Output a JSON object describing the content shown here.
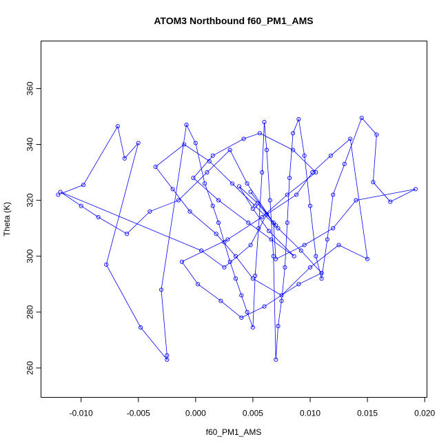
{
  "chart_data": {
    "type": "scatter",
    "render": "points-connected-by-lines",
    "title": "ATOM3 Northbound f60_PM1_AMS",
    "xlabel": "f60_PM1_AMS",
    "ylabel": "Theta (K)",
    "xlim": [
      -0.0135,
      0.0202
    ],
    "ylim": [
      249.5,
      377
    ],
    "x_ticks": [
      -0.01,
      -0.005,
      0.0,
      0.005,
      0.01,
      0.015,
      0.02
    ],
    "x_tick_labels": [
      "-0.010",
      "-0.005",
      "0.000",
      "0.005",
      "0.010",
      "0.015",
      "0.020"
    ],
    "y_ticks": [
      260,
      280,
      300,
      320,
      340,
      360
    ],
    "y_tick_labels": [
      "260",
      "280",
      "300",
      "320",
      "340",
      "360"
    ],
    "grid": false,
    "colors": {
      "series": "#0000ff",
      "axis": "#000000",
      "background": "#ffffff"
    },
    "series": [
      {
        "marker": "open-circle",
        "x": [
          -0.012,
          -0.0098,
          -0.0068,
          -0.0062,
          -0.005,
          -0.0078,
          -0.0048,
          -0.0025,
          -0.0025,
          -0.003,
          -0.0008,
          0.0,
          0.0008,
          0.0015,
          0.002,
          0.0025,
          0.003,
          0.0035,
          0.004,
          0.0045,
          0.005,
          0.0052,
          0.0055,
          0.0058,
          0.006,
          0.0062,
          0.0065,
          0.0068,
          0.007,
          0.0072,
          0.0075,
          0.0078,
          0.008,
          0.0082,
          0.0085,
          0.009,
          0.0095,
          0.01,
          0.0105,
          0.011,
          0.0115,
          0.012,
          0.013,
          0.0145,
          0.0158,
          0.0155,
          0.017,
          0.0192,
          0.014,
          0.012,
          0.0095,
          0.007,
          0.0068,
          0.0045,
          0.003,
          0.001,
          -0.0015,
          -0.004,
          -0.006,
          -0.0085,
          -0.01,
          -0.0118,
          0.0005,
          0.0025,
          0.0048,
          0.0062,
          0.0088,
          0.0102,
          0.0118,
          0.0135,
          0.015,
          0.0125,
          0.01,
          0.0075,
          0.005,
          0.0035,
          0.0018,
          -0.0005,
          -0.002,
          -0.0035,
          -0.001,
          0.0012,
          0.0032,
          0.0052,
          0.0072,
          0.0092,
          0.011,
          0.009,
          0.006,
          0.004,
          0.0022,
          0.0002,
          -0.0012,
          0.0028,
          0.0058,
          0.008,
          0.0105,
          0.0085,
          0.0056,
          0.0042,
          0.0015,
          -0.0002,
          0.002,
          0.0046,
          0.0066,
          0.0086,
          0.0064,
          0.005,
          0.0038,
          0.0054,
          0.007,
          0.0048
        ],
        "y": [
          322.0,
          325.5,
          346.5,
          335.0,
          340.5,
          297.0,
          274.5,
          263.0,
          264.5,
          288.0,
          347.0,
          340.5,
          326.0,
          318.0,
          312.0,
          305.0,
          298.0,
          292.0,
          286.0,
          280.0,
          274.5,
          293.0,
          310.0,
          330.0,
          348.0,
          338.0,
          320.0,
          300.0,
          263.0,
          275.0,
          284.0,
          296.0,
          312.0,
          328.0,
          344.0,
          349.0,
          336.0,
          318.0,
          300.0,
          292.0,
          306.0,
          322.0,
          333.0,
          349.5,
          343.5,
          326.5,
          319.5,
          324.0,
          320.0,
          310.0,
          304.0,
          299.0,
          312.0,
          326.0,
          338.0,
          330.0,
          320.0,
          316.0,
          308.0,
          314.0,
          318.0,
          323.0,
          302.0,
          296.0,
          304.0,
          315.0,
          322.0,
          330.0,
          336.0,
          342.0,
          299.0,
          304.0,
          296.0,
          286.0,
          292.0,
          300.0,
          308.0,
          316.0,
          324.0,
          332.0,
          340.0,
          334.0,
          326.0,
          318.0,
          310.0,
          302.0,
          294.0,
          290.0,
          282.0,
          278.0,
          284.0,
          290.0,
          298.0,
          306.0,
          314.0,
          322.0,
          330.0,
          338.0,
          344.0,
          342.0,
          336.0,
          328.0,
          320.0,
          312.0,
          306.0,
          300.0,
          309.0,
          317.0,
          325.0,
          319.0,
          311.0,
          323.0
        ]
      }
    ]
  }
}
